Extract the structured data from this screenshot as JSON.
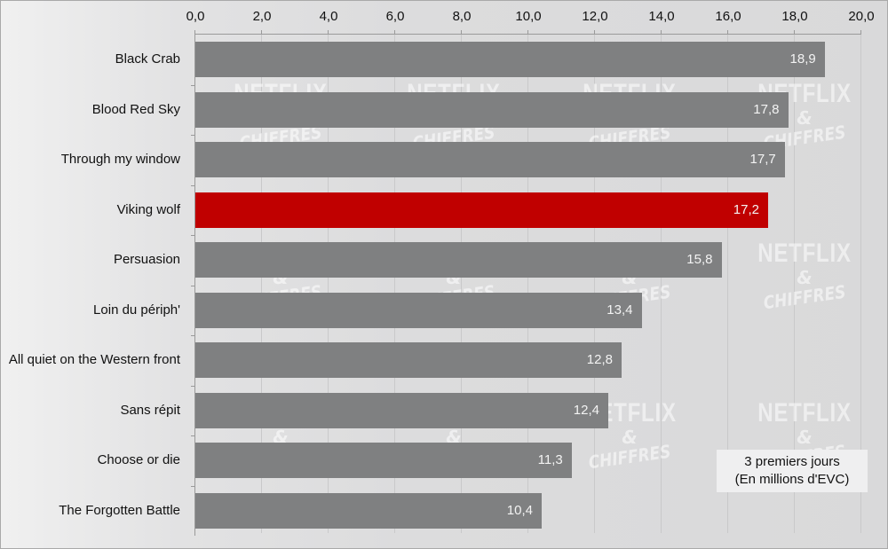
{
  "chart_data": {
    "type": "bar",
    "orientation": "horizontal",
    "title": "",
    "xlabel": "",
    "ylabel": "",
    "xlim": [
      0,
      20
    ],
    "x_ticks": [
      "0,0",
      "2,0",
      "4,0",
      "6,0",
      "8,0",
      "10,0",
      "12,0",
      "14,0",
      "16,0",
      "18,0",
      "20,0"
    ],
    "x_axis_position": "top",
    "grid": true,
    "categories": [
      "Black Crab",
      "Blood Red Sky",
      "Through my window",
      "Viking wolf",
      "Persuasion",
      "Loin du périph'",
      "All quiet on the Western front",
      "Sans répit",
      "Choose or die",
      "The Forgotten Battle"
    ],
    "values": [
      18.9,
      17.8,
      17.7,
      17.2,
      15.8,
      13.4,
      12.8,
      12.4,
      11.3,
      10.4
    ],
    "value_labels": [
      "18,9",
      "17,8",
      "17,7",
      "17,2",
      "15,8",
      "13,4",
      "12,8",
      "12,4",
      "11,3",
      "10,4"
    ],
    "highlighted_category": "Viking wolf",
    "colors": {
      "default": "#7f8081",
      "highlight": "#c00000"
    },
    "annotation": [
      "3 premiers jours",
      "(En millions d'EVC)"
    ],
    "watermark": [
      "NETFLIX",
      "&",
      "CHIFFRES"
    ]
  }
}
